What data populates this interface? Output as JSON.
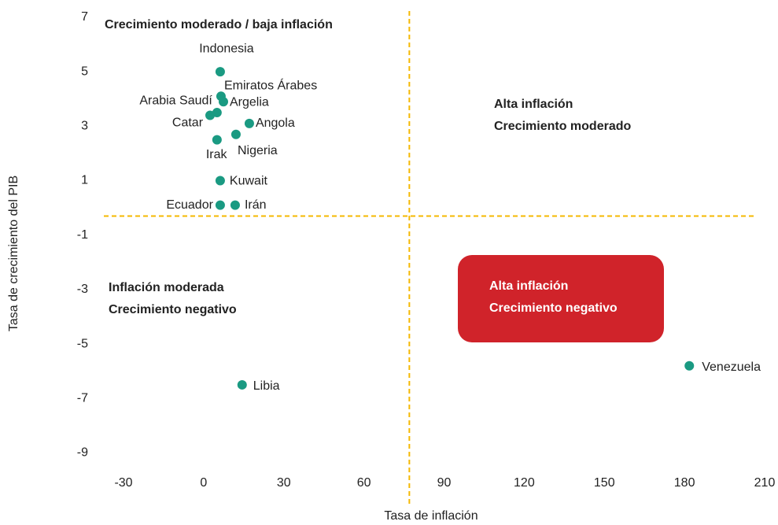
{
  "chart_data": {
    "type": "scatter",
    "xlabel": "Tasa de inflación",
    "ylabel": "Tasa de crecimiento del PIB",
    "xlim": [
      -30,
      210
    ],
    "xticks": [
      -30,
      0,
      30,
      60,
      90,
      120,
      150,
      180,
      210
    ],
    "ylim": [
      -10,
      7
    ],
    "yticks": [
      -9,
      -7,
      -5,
      -3,
      -1,
      1,
      3,
      5,
      7
    ],
    "color": "#1a9a82",
    "reference_color": "#f5b800",
    "reference_x": 77,
    "reference_y": -0.3,
    "labels": [
      "Indonesia",
      "Emiratos Árabes",
      "Argelia",
      "Arabia Saudí",
      "Catar",
      "Angola",
      "Nigeria",
      "Irak",
      "Kuwait",
      "Ecuador",
      "Irán",
      "Libia",
      "Venezuela"
    ],
    "x": [
      6.2,
      6.5,
      7.4,
      5,
      2.4,
      17.1,
      12.1,
      5,
      6.2,
      6.2,
      11.8,
      14.4,
      181.8
    ],
    "y": [
      5,
      4.1,
      3.9,
      3.5,
      3.4,
      3.1,
      2.7,
      2.5,
      1.0,
      0.1,
      0.1,
      -6.5,
      -5.8
    ],
    "annotations": [
      {
        "lines": [
          "Crecimiento moderado / baja inflación"
        ]
      },
      {
        "lines": [
          "Alta inflación",
          "Crecimiento moderado"
        ]
      },
      {
        "lines": [
          "Inflación moderada",
          "Crecimiento negativo"
        ]
      },
      {
        "lines": [
          "Alta inflación",
          "Crecimiento negativo"
        ],
        "color": "#d0232a"
      }
    ]
  }
}
